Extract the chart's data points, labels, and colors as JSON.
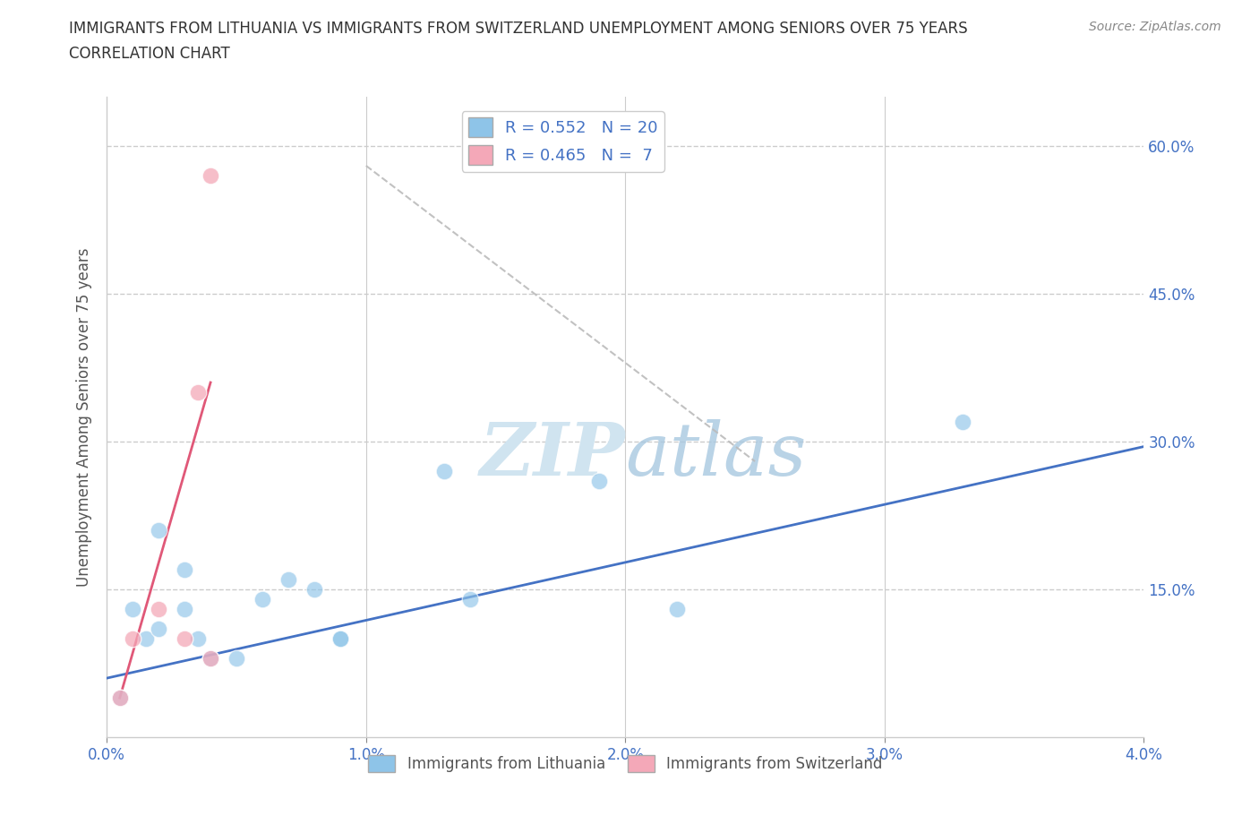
{
  "title_line1": "IMMIGRANTS FROM LITHUANIA VS IMMIGRANTS FROM SWITZERLAND UNEMPLOYMENT AMONG SENIORS OVER 75 YEARS",
  "title_line2": "CORRELATION CHART",
  "source": "Source: ZipAtlas.com",
  "ylabel": "Unemployment Among Seniors over 75 years",
  "xlim": [
    0.0,
    0.04
  ],
  "ylim": [
    0.0,
    0.65
  ],
  "xticks": [
    0.0,
    0.01,
    0.02,
    0.03,
    0.04
  ],
  "xticklabels": [
    "0.0%",
    "1.0%",
    "2.0%",
    "3.0%",
    "4.0%"
  ],
  "yticks": [
    0.0,
    0.15,
    0.3,
    0.45,
    0.6
  ],
  "yticklabels_right": [
    "",
    "15.0%",
    "30.0%",
    "45.0%",
    "60.0%"
  ],
  "blue_color": "#8ec4e8",
  "pink_color": "#f4a8b8",
  "blue_line_color": "#4472c4",
  "pink_line_color": "#e05878",
  "watermark_color": "#d0e4f0",
  "blue_scatter_x": [
    0.0005,
    0.001,
    0.0015,
    0.002,
    0.002,
    0.003,
    0.003,
    0.0035,
    0.004,
    0.005,
    0.006,
    0.007,
    0.008,
    0.009,
    0.009,
    0.013,
    0.014,
    0.019,
    0.022,
    0.033
  ],
  "blue_scatter_y": [
    0.04,
    0.13,
    0.1,
    0.21,
    0.11,
    0.13,
    0.17,
    0.1,
    0.08,
    0.08,
    0.14,
    0.16,
    0.15,
    0.1,
    0.1,
    0.27,
    0.14,
    0.26,
    0.13,
    0.32
  ],
  "pink_scatter_x": [
    0.0005,
    0.001,
    0.002,
    0.003,
    0.0035,
    0.004,
    0.004
  ],
  "pink_scatter_y": [
    0.04,
    0.1,
    0.13,
    0.1,
    0.35,
    0.08,
    0.57
  ],
  "blue_line_x": [
    0.0,
    0.04
  ],
  "blue_line_y": [
    0.06,
    0.295
  ],
  "pink_line_x": [
    0.0005,
    0.004
  ],
  "pink_line_y": [
    0.04,
    0.36
  ],
  "gray_line_x": [
    0.01,
    0.025
  ],
  "gray_line_y": [
    0.58,
    0.28
  ],
  "background_color": "#ffffff",
  "grid_color": "#cccccc",
  "tick_color": "#4472c4",
  "legend_blue_label": "R = 0.552   N = 20",
  "legend_pink_label": "R = 0.465   N =  7",
  "bottom_blue_label": "Immigrants from Lithuania",
  "bottom_pink_label": "Immigrants from Switzerland"
}
